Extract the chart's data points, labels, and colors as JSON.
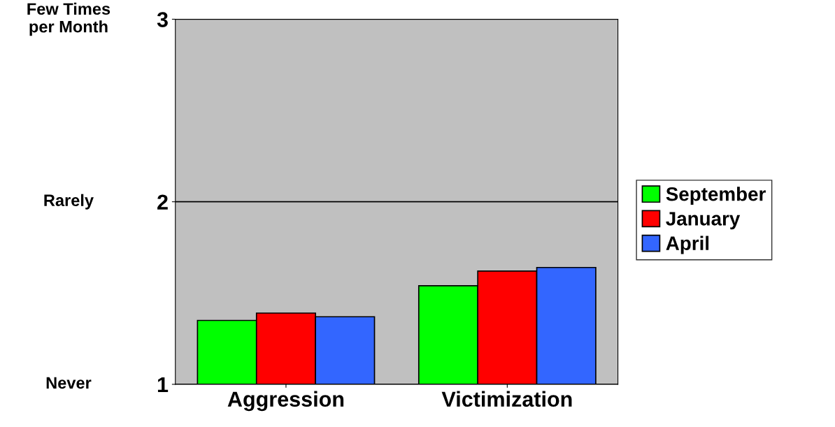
{
  "chart_data": {
    "type": "bar",
    "categories": [
      "Aggression",
      "Victimization"
    ],
    "series": [
      {
        "name": "September",
        "color": "#00ff00",
        "values": [
          1.35,
          1.54
        ]
      },
      {
        "name": "January",
        "color": "#ff0000",
        "values": [
          1.39,
          1.62
        ]
      },
      {
        "name": "April",
        "color": "#3366ff",
        "values": [
          1.37,
          1.64
        ]
      }
    ],
    "ylim": [
      1,
      3
    ],
    "yticks": [
      1,
      2,
      3
    ],
    "annotations": [
      "Never",
      "Rarely",
      "Few Times\nper Month"
    ],
    "grid": "y",
    "legend": "right"
  }
}
